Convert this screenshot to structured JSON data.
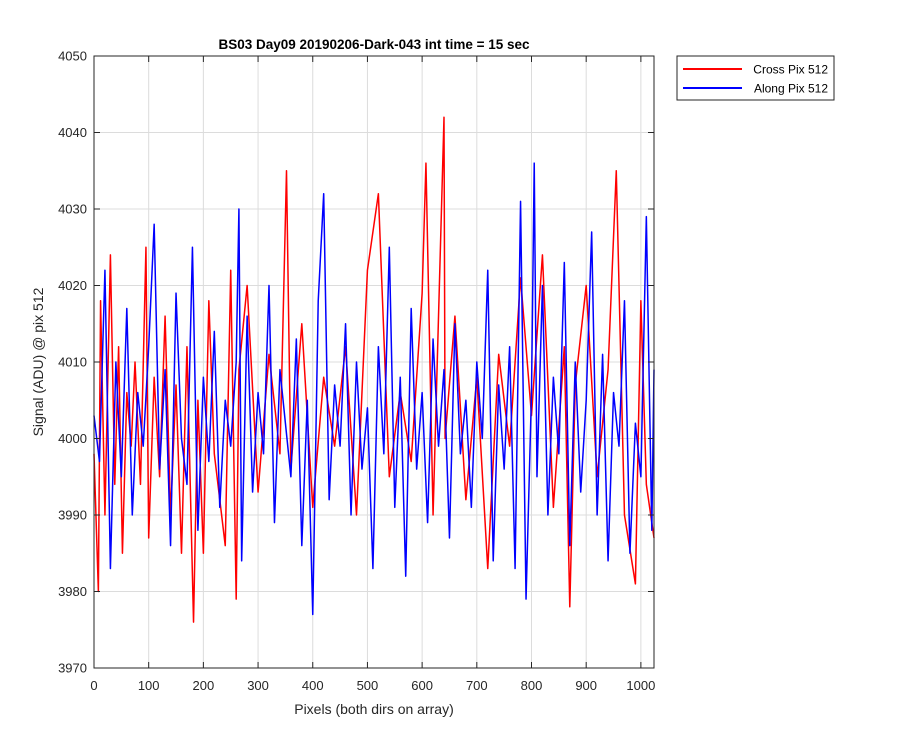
{
  "chart_data": {
    "type": "line",
    "title": "BS03 Day09 20190206-Dark-043 int time = 15 sec",
    "xlabel": "Pixels (both dirs on array)",
    "ylabel": "Signal (ADU) @ pix 512",
    "xlim": [
      0,
      1024
    ],
    "ylim": [
      3970,
      4050
    ],
    "xticks": [
      "0",
      "100",
      "200",
      "300",
      "400",
      "500",
      "600",
      "700",
      "800",
      "900",
      "1000"
    ],
    "yticks": [
      "3970",
      "3980",
      "3990",
      "4000",
      "4010",
      "4020",
      "4030",
      "4040",
      "4050"
    ],
    "grid": true,
    "legend_position": "outside-top-right",
    "series": [
      {
        "name": "Cross Pix 512",
        "color": "#ff0000",
        "x": [
          0,
          8,
          12,
          20,
          30,
          38,
          45,
          52,
          60,
          68,
          75,
          85,
          95,
          100,
          110,
          120,
          130,
          140,
          150,
          160,
          170,
          182,
          190,
          200,
          210,
          220,
          240,
          250,
          260,
          265,
          280,
          300,
          320,
          340,
          352,
          360,
          380,
          400,
          420,
          440,
          460,
          480,
          500,
          520,
          540,
          560,
          580,
          600,
          607,
          620,
          640,
          642,
          660,
          680,
          700,
          720,
          740,
          760,
          780,
          800,
          820,
          840,
          860,
          870,
          880,
          900,
          920,
          940,
          955,
          970,
          990,
          1000,
          1010,
          1024
        ],
        "y": [
          3998,
          3980,
          4018,
          3990,
          4024,
          3994,
          4012,
          3985,
          4006,
          3999,
          4010,
          3994,
          4025,
          3987,
          4008,
          3995,
          4016,
          3990,
          4007,
          3985,
          4012,
          3976,
          4005,
          3985,
          4018,
          3998,
          3986,
          4022,
          3979,
          4009,
          4020,
          3993,
          4011,
          3998,
          4035,
          3996,
          4015,
          3991,
          4008,
          3999,
          4012,
          3990,
          4022,
          4032,
          3995,
          4006,
          3997,
          4019,
          4036,
          3990,
          4042,
          4000,
          4016,
          3992,
          4008,
          3983,
          4011,
          3999,
          4021,
          4003,
          4024,
          3991,
          4012,
          3978,
          4007,
          4020,
          3995,
          4009,
          4035,
          3990,
          3981,
          4018,
          3994,
          3987
        ]
      },
      {
        "name": "Along Pix 512",
        "color": "#0000ff",
        "x": [
          0,
          10,
          20,
          30,
          40,
          50,
          60,
          70,
          80,
          90,
          100,
          110,
          120,
          130,
          140,
          150,
          160,
          170,
          180,
          190,
          200,
          210,
          220,
          230,
          240,
          250,
          260,
          265,
          270,
          280,
          290,
          300,
          310,
          320,
          330,
          340,
          350,
          360,
          370,
          380,
          390,
          400,
          410,
          420,
          430,
          440,
          450,
          460,
          470,
          480,
          490,
          500,
          510,
          520,
          530,
          540,
          550,
          560,
          570,
          580,
          590,
          600,
          610,
          620,
          630,
          640,
          650,
          660,
          670,
          680,
          690,
          700,
          710,
          720,
          730,
          740,
          750,
          760,
          770,
          780,
          790,
          800,
          805,
          810,
          820,
          830,
          840,
          850,
          860,
          870,
          880,
          890,
          900,
          910,
          920,
          930,
          940,
          950,
          960,
          970,
          980,
          990,
          1000,
          1010,
          1020,
          1024
        ],
        "y": [
          4003,
          3997,
          4022,
          3983,
          4010,
          3995,
          4017,
          3990,
          4006,
          3999,
          4012,
          4028,
          3996,
          4009,
          3986,
          4019,
          4000,
          3994,
          4025,
          3988,
          4008,
          3997,
          4014,
          3991,
          4005,
          3999,
          4010,
          4030,
          3984,
          4016,
          3993,
          4006,
          3998,
          4020,
          3989,
          4009,
          4002,
          3995,
          4013,
          3986,
          4005,
          3977,
          4018,
          4032,
          3992,
          4007,
          3999,
          4015,
          3990,
          4010,
          3996,
          4004,
          3983,
          4012,
          3998,
          4025,
          3991,
          4008,
          3982,
          4017,
          3996,
          4006,
          3989,
          4013,
          3999,
          4009,
          3987,
          4015,
          3998,
          4005,
          3991,
          4010,
          4000,
          4022,
          3984,
          4007,
          3996,
          4012,
          3983,
          4031,
          3979,
          4006,
          4036,
          3995,
          4020,
          3990,
          4008,
          3998,
          4023,
          3986,
          4010,
          3993,
          4005,
          4027,
          3990,
          4011,
          3984,
          4006,
          3999,
          4018,
          3985,
          4002,
          3995,
          4029,
          3988,
          4009
        ]
      }
    ]
  }
}
